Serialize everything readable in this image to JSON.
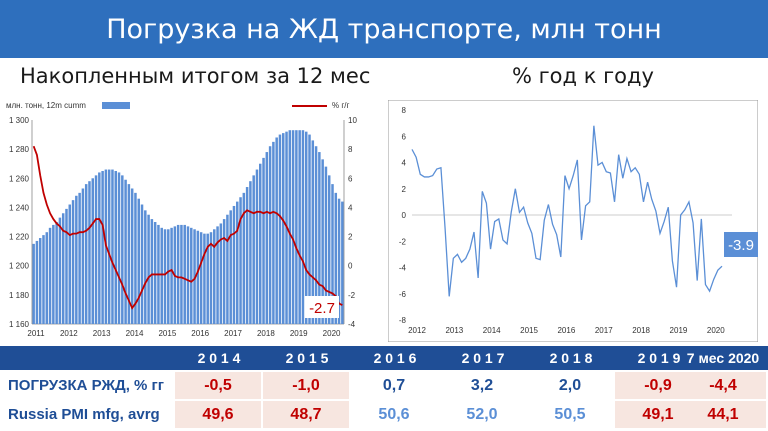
{
  "title": "Погрузка на ЖД транспорте, млн тонн",
  "left_subtitle": "Накопленным итогом за 12 мес",
  "right_subtitle": "% год к году",
  "chart_data": [
    {
      "type": "bar",
      "legend_left": "млн. тонн, 12m cumm",
      "legend_right": "% г/г",
      "ylim_left": [
        1160,
        1300
      ],
      "yticks_left": [
        "1 160",
        "1 180",
        "1 200",
        "1 220",
        "1 240",
        "1 260",
        "1 280",
        "1 300"
      ],
      "ylim_right": [
        -4,
        10
      ],
      "yticks_right": [
        "-4",
        "-2",
        "0",
        "2",
        "4",
        "6",
        "8",
        "10"
      ],
      "xticks": [
        "2011",
        "2012",
        "2013",
        "2014",
        "2015",
        "2016",
        "2017",
        "2018",
        "2019",
        "2020"
      ],
      "colors": {
        "bars": "#5b8fd6",
        "line": "#c00000"
      },
      "series": [
        {
          "values": [
            1215,
            1217,
            1219,
            1221,
            1223,
            1226,
            1228,
            1230,
            1233,
            1236,
            1239,
            1242,
            1245,
            1248,
            1250,
            1253,
            1256,
            1258,
            1260,
            1262,
            1264,
            1265,
            1266,
            1266,
            1266,
            1265,
            1264,
            1262,
            1259,
            1256,
            1253,
            1250,
            1246,
            1242,
            1238,
            1235,
            1232,
            1230,
            1228,
            1226,
            1225,
            1225,
            1226,
            1227,
            1228,
            1228,
            1228,
            1227,
            1226,
            1225,
            1224,
            1223,
            1222,
            1222,
            1223,
            1225,
            1227,
            1229,
            1232,
            1235,
            1238,
            1241,
            1244,
            1247,
            1250,
            1254,
            1258,
            1262,
            1266,
            1270,
            1274,
            1278,
            1282,
            1285,
            1288,
            1290,
            1291,
            1292,
            1293,
            1293,
            1293,
            1293,
            1293,
            1292,
            1290,
            1286,
            1282,
            1278,
            1273,
            1268,
            1262,
            1256,
            1250,
            1246,
            1244
          ]
        },
        {
          "values": [
            8.2,
            7.6,
            6.2,
            5.0,
            4.2,
            3.6,
            3.2,
            2.9,
            2.7,
            2.4,
            2.3,
            2.1,
            2.2,
            2.2,
            2.3,
            2.3,
            2.4,
            2.6,
            2.9,
            3.2,
            3.2,
            2.8,
            1.4,
            0.8,
            0.2,
            -0.3,
            -0.8,
            -1.3,
            -1.9,
            -2.4,
            -2.9,
            -2.6,
            -2.2,
            -1.7,
            -1.2,
            -0.8,
            -0.6,
            -0.6,
            -0.6,
            -0.6,
            -0.6,
            -0.4,
            -0.3,
            -0.7,
            -0.8,
            -0.8,
            -0.9,
            -1.0,
            -1.1,
            -0.9,
            -0.4,
            0.2,
            0.8,
            1.3,
            1.5,
            1.3,
            1.6,
            1.8,
            1.9,
            1.7,
            2.1,
            2.2,
            2.4,
            3.2,
            3.6,
            3.8,
            3.7,
            3.6,
            3.7,
            3.7,
            3.6,
            3.7,
            3.6,
            3.7,
            3.6,
            3.4,
            3.1,
            2.7,
            2.2,
            1.8,
            1.2,
            0.7,
            0.3,
            -0.3,
            -0.6,
            -0.8,
            -1.0,
            -1.3,
            -1.4,
            -1.7,
            -1.8,
            -1.9,
            -2.1,
            -2.6,
            -2.7
          ]
        }
      ],
      "end_label": "-2.7"
    },
    {
      "type": "line",
      "ylim": [
        -8,
        8
      ],
      "yticks": [
        "-8",
        "-6",
        "-4",
        "-2",
        "0",
        "2",
        "4",
        "6",
        "8"
      ],
      "xticks": [
        "2012",
        "2013",
        "2014",
        "2015",
        "2016",
        "2017",
        "2018",
        "2019",
        "2020"
      ],
      "colors": {
        "line": "#5b8fd6"
      },
      "series": [
        {
          "values": [
            5.0,
            4.4,
            3.1,
            2.9,
            2.9,
            3.0,
            3.5,
            3.6,
            -1.0,
            -6.2,
            -3.3,
            -3.0,
            -3.6,
            -3.3,
            -2.6,
            -1.3,
            -4.8,
            1.8,
            0.9,
            -2.6,
            -0.5,
            -0.3,
            -1.9,
            -2.2,
            0.2,
            2.0,
            0.2,
            0.6,
            -0.6,
            -1.4,
            -3.3,
            -3.4,
            -0.4,
            0.8,
            -0.7,
            -1.5,
            -3.2,
            3.0,
            2.0,
            3.0,
            4.2,
            -1.9,
            0.7,
            1.0,
            6.8,
            3.8,
            4.0,
            3.3,
            3.2,
            1.0,
            4.6,
            2.8,
            4.3,
            3.3,
            3.6,
            3.1,
            1.0,
            2.5,
            1.2,
            0.3,
            -1.4,
            -0.5,
            0.6,
            -3.5,
            -5.5,
            0.0,
            0.4,
            1.0,
            -0.6,
            -5.0,
            -0.3,
            -5.3,
            -5.8,
            -4.9,
            -4.2,
            -3.9
          ]
        }
      ],
      "end_label": "-3.9"
    }
  ],
  "table": {
    "years": [
      "2 0 1 4",
      "2 0 1 5",
      "2 0 1 6",
      "2 0 1 7",
      "2 0 1 8",
      "2 0 1 9",
      "7 мес 2020"
    ],
    "rows": [
      {
        "label": "ПОГРУЗКА РЖД, % гг",
        "values": [
          "-0,5",
          "-1,0",
          "0,7",
          "3,2",
          "2,0",
          "-0,9",
          "-4,4"
        ]
      },
      {
        "label": "Russia PMI mfg, avrg",
        "values": [
          "49,6",
          "48,7",
          "50,6",
          "52,0",
          "50,5",
          "49,1",
          "44,1"
        ]
      }
    ]
  }
}
